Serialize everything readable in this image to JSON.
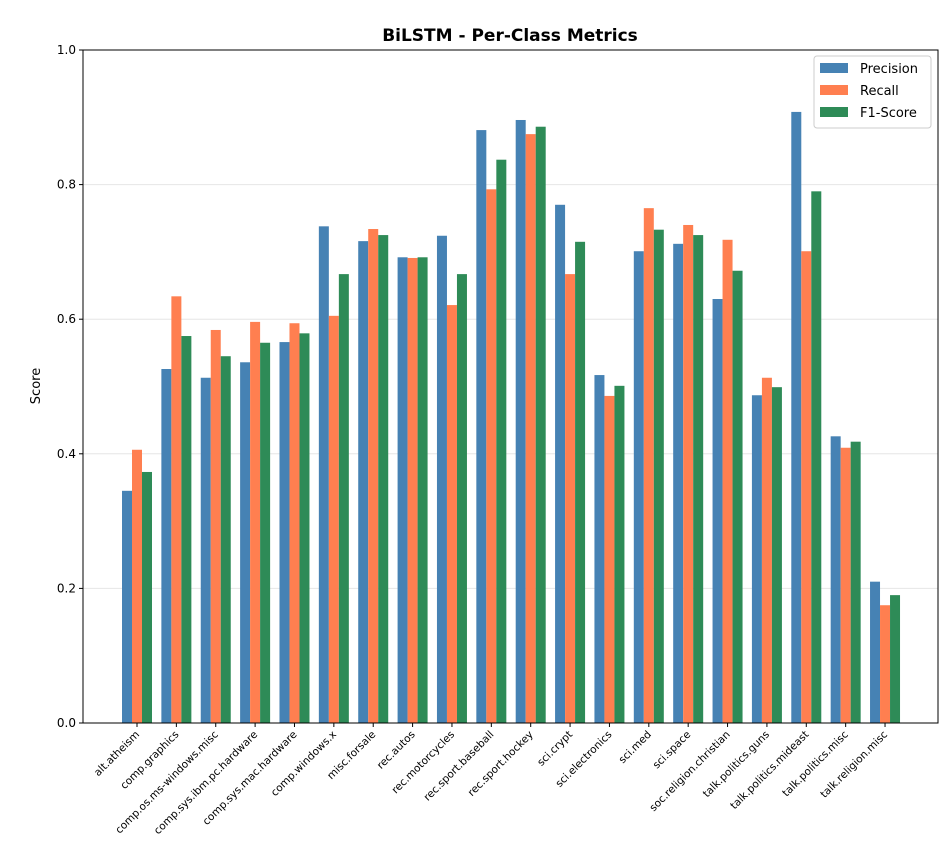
{
  "chart_data": {
    "type": "bar",
    "title": "BiLSTM - Per-Class Metrics",
    "xlabel": "",
    "ylabel": "Score",
    "ylim": [
      0,
      1.0
    ],
    "yticks": [
      "0.0",
      "0.2",
      "0.4",
      "0.6",
      "0.8",
      "1.0"
    ],
    "grid": "y",
    "legend_position": "top-right",
    "categories": [
      "alt.atheism",
      "comp.graphics",
      "comp.os.ms-windows.misc",
      "comp.sys.ibm.pc.hardware",
      "comp.sys.mac.hardware",
      "comp.windows.x",
      "misc.forsale",
      "rec.autos",
      "rec.motorcycles",
      "rec.sport.baseball",
      "rec.sport.hockey",
      "sci.crypt",
      "sci.electronics",
      "sci.med",
      "sci.space",
      "soc.religion.christian",
      "talk.politics.guns",
      "talk.politics.mideast",
      "talk.politics.misc",
      "talk.religion.misc"
    ],
    "series": [
      {
        "name": "Precision",
        "color": "#4682b4",
        "values": [
          0.345,
          0.526,
          0.513,
          0.536,
          0.566,
          0.738,
          0.716,
          0.692,
          0.724,
          0.881,
          0.896,
          0.77,
          0.517,
          0.701,
          0.712,
          0.63,
          0.487,
          0.908,
          0.426,
          0.21
        ]
      },
      {
        "name": "Recall",
        "color": "#ff7f50",
        "values": [
          0.406,
          0.634,
          0.584,
          0.596,
          0.594,
          0.605,
          0.734,
          0.691,
          0.621,
          0.793,
          0.875,
          0.667,
          0.486,
          0.765,
          0.74,
          0.718,
          0.513,
          0.701,
          0.409,
          0.175
        ]
      },
      {
        "name": "F1-Score",
        "color": "#2e8b57",
        "values": [
          0.373,
          0.575,
          0.545,
          0.565,
          0.579,
          0.667,
          0.725,
          0.692,
          0.667,
          0.837,
          0.886,
          0.715,
          0.501,
          0.733,
          0.725,
          0.672,
          0.499,
          0.79,
          0.418,
          0.19
        ]
      }
    ]
  }
}
